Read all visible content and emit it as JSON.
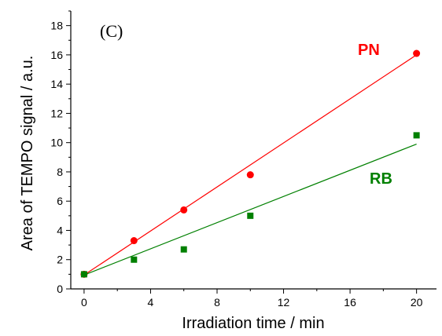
{
  "chart_data": {
    "type": "scatter",
    "panel_label": "(C)",
    "xlabel": "Irradiation time / min",
    "ylabel": "Area of TEMPO signal / a.u.",
    "xlim": [
      -0.8,
      21.2
    ],
    "ylim": [
      0,
      19
    ],
    "xticks": [
      0,
      4,
      8,
      12,
      16,
      20
    ],
    "yticks": [
      0,
      2,
      4,
      6,
      8,
      10,
      12,
      14,
      16,
      18
    ],
    "grid": false,
    "series": [
      {
        "name": "PN",
        "color": "#ff0000",
        "marker": "circle",
        "x": [
          0,
          3,
          6,
          10,
          20
        ],
        "y": [
          1.0,
          3.3,
          5.4,
          7.8,
          16.1
        ],
        "fit": {
          "x": [
            0,
            20
          ],
          "y": [
            0.95,
            16.0
          ]
        }
      },
      {
        "name": "RB",
        "color": "#008000",
        "marker": "square",
        "x": [
          0,
          3,
          6,
          10,
          20
        ],
        "y": [
          1.0,
          2.0,
          2.7,
          5.0,
          10.5
        ],
        "fit": {
          "x": [
            0,
            20
          ],
          "y": [
            0.95,
            9.9
          ]
        }
      }
    ]
  }
}
